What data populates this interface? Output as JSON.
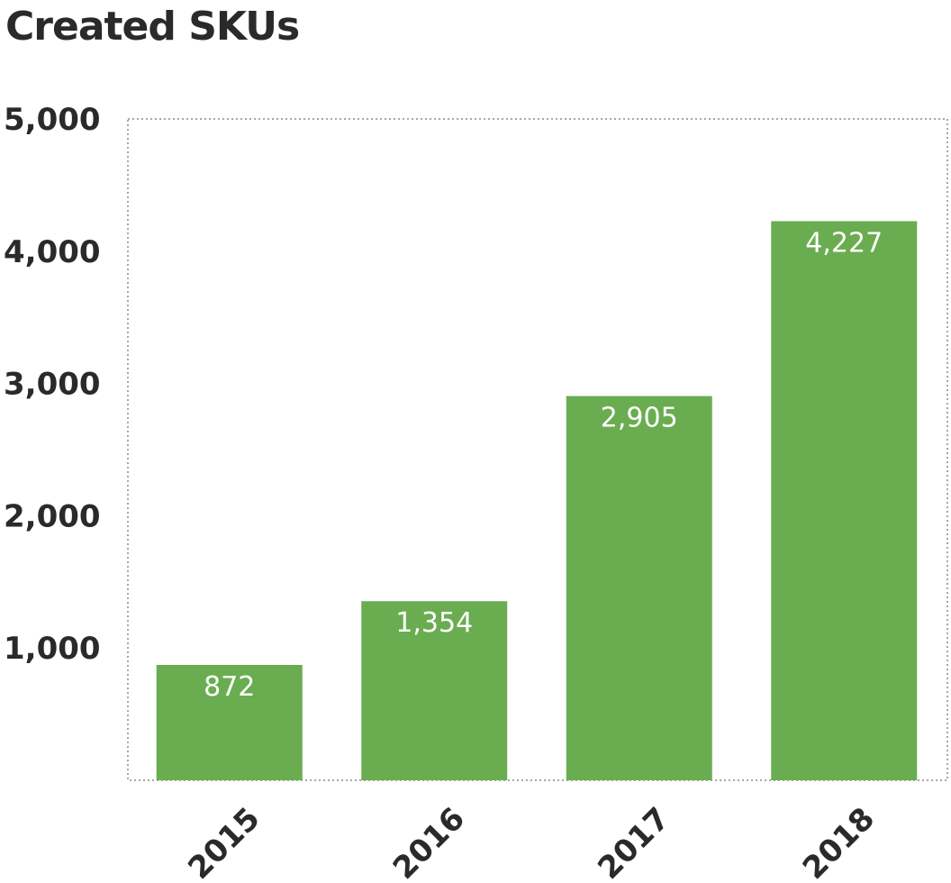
{
  "chart_data": {
    "type": "bar",
    "title": "Created SKUs",
    "xlabel": "",
    "ylabel": "",
    "categories": [
      "2015",
      "2016",
      "2017",
      "2018"
    ],
    "values": [
      872,
      1354,
      2905,
      4227
    ],
    "value_labels": [
      "872",
      "1,354",
      "2,905",
      "4,227"
    ],
    "ylim": [
      0,
      5000
    ],
    "yticks": [
      1000,
      2000,
      3000,
      4000,
      5000
    ],
    "ytick_labels": [
      "1,000",
      "2,000",
      "3,000",
      "4,000",
      "5,000"
    ],
    "grid": false,
    "legend": "none",
    "bar_color": "#6aad50",
    "frame": "dotted"
  }
}
